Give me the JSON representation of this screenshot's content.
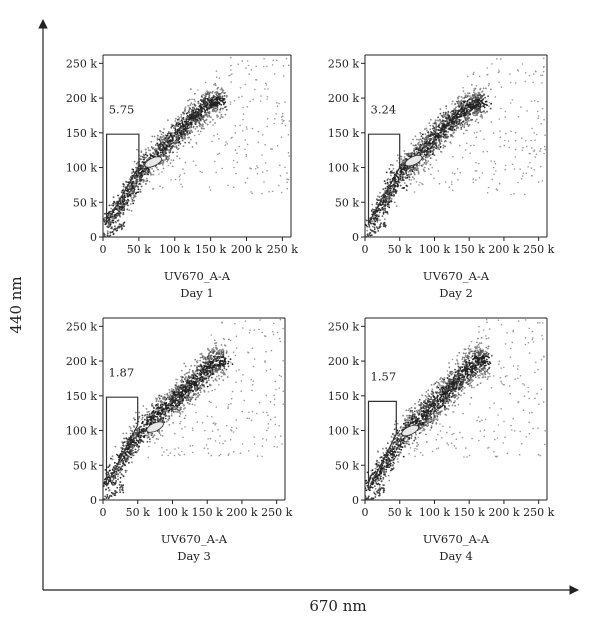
{
  "figure": {
    "outer_xlabel": "670 nm",
    "outer_ylabel": "440 nm"
  },
  "chart_data": [
    {
      "type": "scatter",
      "title": "",
      "xlabel": "UV670_A-A",
      "caption": "Day 1",
      "ylabel": "",
      "xlim": [
        0,
        262
      ],
      "ylim": [
        0,
        262
      ],
      "x_ticks": [
        0,
        50,
        100,
        150,
        200,
        250
      ],
      "x_tick_labels": [
        "0",
        "50 k",
        "100 k",
        "150 k",
        "200 k",
        "250 k"
      ],
      "y_ticks": [
        0,
        50,
        100,
        150,
        200,
        250
      ],
      "y_tick_labels": [
        "0",
        "50 k",
        "100 k",
        "150 k",
        "200 k",
        "250 k"
      ],
      "gate_label": "5.75",
      "gate_polygon": [
        [
          5,
          148
        ],
        [
          50,
          148
        ],
        [
          50,
          102
        ],
        [
          5,
          20
        ]
      ],
      "density_ridge": [
        [
          5,
          15
        ],
        [
          35,
          62
        ],
        [
          55,
          98
        ],
        [
          75,
          118
        ],
        [
          100,
          145
        ],
        [
          125,
          172
        ],
        [
          150,
          195
        ]
      ],
      "spread": 18,
      "hotspot": [
        70,
        108
      ],
      "grid": false,
      "legend": "none"
    },
    {
      "type": "scatter",
      "title": "",
      "xlabel": "UV670_A-A",
      "caption": "Day 2",
      "ylabel": "",
      "xlim": [
        0,
        262
      ],
      "ylim": [
        0,
        262
      ],
      "x_ticks": [
        0,
        50,
        100,
        150,
        200,
        250
      ],
      "x_tick_labels": [
        "0",
        "50 k",
        "100 k",
        "150 k",
        "200 k",
        "250 k"
      ],
      "y_ticks": [
        0,
        50,
        100,
        150,
        200,
        250
      ],
      "y_tick_labels": [
        "0",
        "50 k",
        "100 k",
        "150 k",
        "200 k",
        "250 k"
      ],
      "gate_label": "3.24",
      "gate_polygon": [
        [
          5,
          148
        ],
        [
          50,
          148
        ],
        [
          50,
          100
        ],
        [
          5,
          20
        ]
      ],
      "density_ridge": [
        [
          5,
          15
        ],
        [
          35,
          62
        ],
        [
          55,
          98
        ],
        [
          80,
          120
        ],
        [
          105,
          148
        ],
        [
          130,
          172
        ],
        [
          155,
          192
        ]
      ],
      "spread": 19,
      "hotspot": [
        70,
        110
      ],
      "grid": false,
      "legend": "none"
    },
    {
      "type": "scatter",
      "title": "",
      "xlabel": "UV670_A-A",
      "caption": "Day 3",
      "ylabel": "",
      "xlim": [
        0,
        262
      ],
      "ylim": [
        0,
        262
      ],
      "x_ticks": [
        0,
        50,
        100,
        150,
        200,
        250
      ],
      "x_tick_labels": [
        "0",
        "50 k",
        "100 k",
        "150 k",
        "200 k",
        "250 k"
      ],
      "y_ticks": [
        0,
        50,
        100,
        150,
        200,
        250
      ],
      "y_tick_labels": [
        "0",
        "50 k",
        "100 k",
        "150 k",
        "200 k",
        "250 k"
      ],
      "gate_label": "1.87",
      "gate_polygon": [
        [
          5,
          148
        ],
        [
          50,
          148
        ],
        [
          50,
          108
        ],
        [
          5,
          20
        ]
      ],
      "density_ridge": [
        [
          5,
          18
        ],
        [
          35,
          70
        ],
        [
          60,
          105
        ],
        [
          85,
          128
        ],
        [
          110,
          150
        ],
        [
          135,
          172
        ],
        [
          160,
          200
        ]
      ],
      "spread": 20,
      "hotspot": [
        75,
        105
      ],
      "grid": false,
      "legend": "none"
    },
    {
      "type": "scatter",
      "title": "",
      "xlabel": "UV670_A-A",
      "caption": "Day 4",
      "ylabel": "",
      "xlim": [
        0,
        262
      ],
      "ylim": [
        0,
        262
      ],
      "x_ticks": [
        0,
        50,
        100,
        150,
        200,
        250
      ],
      "x_tick_labels": [
        "0",
        "50 k",
        "100 k",
        "150 k",
        "200 k",
        "250 k"
      ],
      "y_ticks": [
        0,
        50,
        100,
        150,
        200,
        250
      ],
      "y_tick_labels": [
        "0",
        "50 k",
        "100 k",
        "150 k",
        "200 k",
        "250 k"
      ],
      "gate_label": "1.57",
      "gate_polygon": [
        [
          5,
          142
        ],
        [
          45,
          142
        ],
        [
          45,
          95
        ],
        [
          5,
          15
        ]
      ],
      "density_ridge": [
        [
          5,
          15
        ],
        [
          35,
          62
        ],
        [
          55,
          95
        ],
        [
          80,
          118
        ],
        [
          105,
          142
        ],
        [
          130,
          168
        ],
        [
          160,
          200
        ]
      ],
      "spread": 22,
      "hotspot": [
        65,
        100
      ],
      "grid": false,
      "legend": "none"
    }
  ]
}
